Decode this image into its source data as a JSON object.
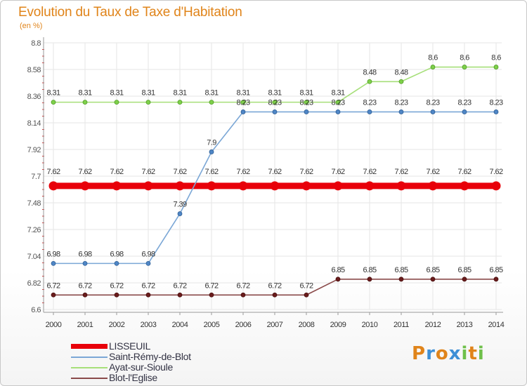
{
  "header": {
    "title": "Evolution du Taux de Taxe d'Habitation",
    "unit": "(en %)"
  },
  "chart_data": {
    "type": "line",
    "title": "Evolution du Taux de Taxe d'Habitation",
    "ylabel": "(en %)",
    "xlabel": "",
    "x": [
      "2000",
      "2001",
      "2002",
      "2003",
      "2004",
      "2005",
      "2006",
      "2007",
      "2008",
      "2009",
      "2010",
      "2011",
      "2012",
      "2013",
      "2014"
    ],
    "ylim": [
      6.6,
      8.8
    ],
    "yticks": [
      "8.8",
      "8.58",
      "8.36",
      "8.14",
      "7.92",
      "7.7",
      "7.48",
      "7.26",
      "7.04",
      "6.82",
      "6.6"
    ],
    "ytick_values": [
      8.8,
      8.58,
      8.36,
      8.14,
      7.92,
      7.7,
      7.48,
      7.26,
      7.04,
      6.82,
      6.6
    ],
    "series": [
      {
        "name": "LISSEUIL",
        "color": "#e8000a",
        "point_color": "#e8000a",
        "point_stroke": "#c00008",
        "values": [
          7.62,
          7.62,
          7.62,
          7.62,
          7.62,
          7.62,
          7.62,
          7.62,
          7.62,
          7.62,
          7.62,
          7.62,
          7.62,
          7.62,
          7.62
        ],
        "labels": [
          "7.62",
          "7.62",
          "7.62",
          "7.62",
          "7.62",
          "7.62",
          "7.62",
          "7.62",
          "7.62",
          "7.62",
          "7.62",
          "7.62",
          "7.62",
          "7.62",
          "7.62"
        ]
      },
      {
        "name": "Saint-Rémy-de-Blot",
        "color": "#7ba7d6",
        "point_color": "#4f86c6",
        "point_stroke": "#2f5f95",
        "values": [
          6.98,
          6.98,
          6.98,
          6.98,
          7.39,
          7.9,
          8.23,
          8.23,
          8.23,
          8.23,
          8.23,
          8.23,
          8.23,
          8.23,
          8.23
        ],
        "labels": [
          "6.98",
          "6.98",
          "6.98",
          "6.98",
          "7.39",
          "7.9",
          "8.23",
          "8.23",
          "8.23",
          "8.23",
          "8.23",
          "8.23",
          "8.23",
          "8.23",
          "8.23"
        ]
      },
      {
        "name": "Ayat-sur-Sioule",
        "color": "#a6df79",
        "point_color": "#7ed04a",
        "point_stroke": "#4f9a25",
        "values": [
          8.31,
          8.31,
          8.31,
          8.31,
          8.31,
          8.31,
          8.31,
          8.31,
          8.31,
          8.31,
          8.48,
          8.48,
          8.6,
          8.6,
          8.6
        ],
        "labels": [
          "8.31",
          "8.31",
          "8.31",
          "8.31",
          "8.31",
          "8.31",
          "8.31",
          "8.31",
          "8.31",
          "8.31",
          "8.48",
          "8.48",
          "8.6",
          "8.6",
          "8.6"
        ]
      },
      {
        "name": "Blot-l'Eglise",
        "color": "#8a4a4a",
        "point_color": "#6a1c1c",
        "point_stroke": "#4a0f0f",
        "values": [
          6.72,
          6.72,
          6.72,
          6.72,
          6.72,
          6.72,
          6.72,
          6.72,
          6.72,
          6.85,
          6.85,
          6.85,
          6.85,
          6.85,
          6.85
        ],
        "labels": [
          "6.72",
          "6.72",
          "6.72",
          "6.72",
          "6.72",
          "6.72",
          "6.72",
          "6.72",
          "6.72",
          "6.85",
          "6.85",
          "6.85",
          "6.85",
          "6.85",
          "6.85"
        ]
      }
    ],
    "grid": true,
    "legend_position": "bottom-left"
  },
  "legend": {
    "items": [
      {
        "label": "LISSEUIL",
        "color": "#e8000a"
      },
      {
        "label": "Saint-Rémy-de-Blot",
        "color": "#7ba7d6"
      },
      {
        "label": "Ayat-sur-Sioule",
        "color": "#a6df79"
      },
      {
        "label": "Blot-l'Eglise",
        "color": "#8a4a4a"
      }
    ]
  },
  "logo": {
    "text": "Proxiti",
    "letter_colors": [
      "#e0841a",
      "#3d8fd6",
      "#e0841a",
      "#3d8fd6",
      "#6fc04a",
      "#e0841a",
      "#6fc04a"
    ]
  }
}
